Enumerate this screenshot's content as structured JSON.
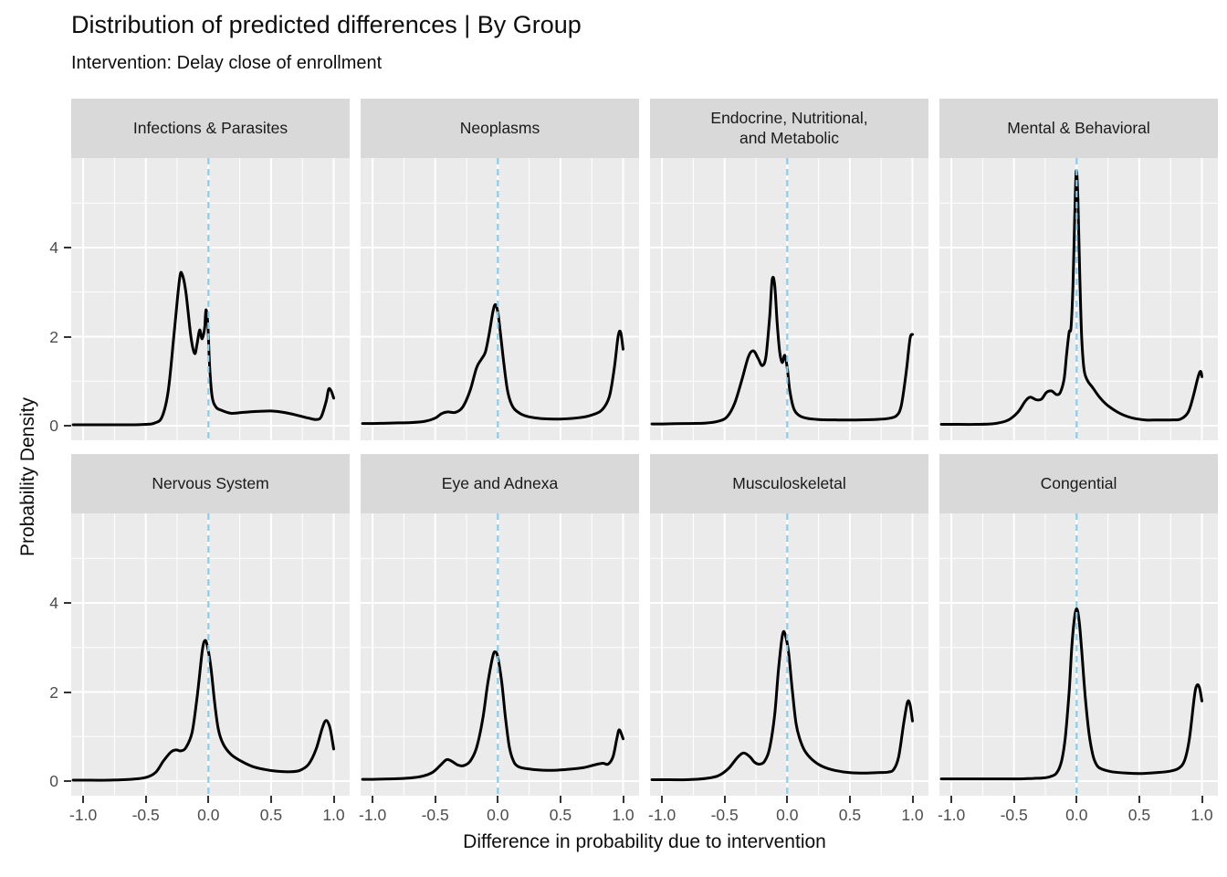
{
  "title": "Distribution of predicted differences | By Group",
  "subtitle": "Intervention: Delay close of enrollment",
  "x_axis": {
    "label": "Difference in probability due to intervention",
    "ticks": [
      "-1.0",
      "-0.5",
      "0.0",
      "0.5",
      "1.0"
    ],
    "tick_values": [
      -1.0,
      -0.5,
      0.0,
      0.5,
      1.0
    ],
    "minor_gridlines": [
      -0.75,
      -0.25,
      0.25,
      0.75
    ],
    "range": [
      -1.1,
      1.13
    ]
  },
  "y_axis": {
    "label": "Probability Density",
    "ticks": [
      "0",
      "2",
      "4"
    ],
    "tick_values": [
      0,
      2,
      4
    ],
    "minor_gridlines": [
      1,
      3,
      5
    ],
    "range": [
      -0.3,
      6.0
    ]
  },
  "colors": {
    "panel_background": "#EBEBEB",
    "strip_background": "#D9D9D9",
    "grid_line": "#FFFFFF",
    "curve": "#000000",
    "reference_line": "#87CEEB",
    "axis_text": "#4D4D4D",
    "tick_mark": "#333333"
  },
  "chart_data": {
    "type": "line",
    "subtype": "faceted-density",
    "layout": {
      "rows": 2,
      "cols": 4
    },
    "grid": "major and minor white gridlines on grey panel",
    "legend": "none",
    "reference_line_x": 0,
    "facets": [
      {
        "title": "Infections & Parasites",
        "points": [
          [
            -1.08,
            0.02
          ],
          [
            -1,
            0.02
          ],
          [
            -0.8,
            0.02
          ],
          [
            -0.6,
            0.02
          ],
          [
            -0.5,
            0.03
          ],
          [
            -0.43,
            0.06
          ],
          [
            -0.37,
            0.2
          ],
          [
            -0.32,
            0.8
          ],
          [
            -0.27,
            2.2
          ],
          [
            -0.23,
            3.3
          ],
          [
            -0.21,
            3.4
          ],
          [
            -0.18,
            3.0
          ],
          [
            -0.14,
            2.0
          ],
          [
            -0.11,
            1.62
          ],
          [
            -0.09,
            1.85
          ],
          [
            -0.07,
            2.15
          ],
          [
            -0.05,
            1.95
          ],
          [
            -0.03,
            2.2
          ],
          [
            -0.02,
            2.6
          ],
          [
            -0.005,
            2.3
          ],
          [
            0.01,
            1.3
          ],
          [
            0.03,
            0.65
          ],
          [
            0.06,
            0.42
          ],
          [
            0.1,
            0.35
          ],
          [
            0.18,
            0.28
          ],
          [
            0.28,
            0.3
          ],
          [
            0.38,
            0.32
          ],
          [
            0.5,
            0.33
          ],
          [
            0.6,
            0.3
          ],
          [
            0.7,
            0.24
          ],
          [
            0.8,
            0.17
          ],
          [
            0.86,
            0.14
          ],
          [
            0.9,
            0.2
          ],
          [
            0.94,
            0.55
          ],
          [
            0.96,
            0.82
          ],
          [
            0.98,
            0.78
          ],
          [
            1.0,
            0.62
          ]
        ]
      },
      {
        "title": "Neoplasms",
        "points": [
          [
            -1.08,
            0.05
          ],
          [
            -1,
            0.05
          ],
          [
            -0.85,
            0.06
          ],
          [
            -0.7,
            0.07
          ],
          [
            -0.58,
            0.1
          ],
          [
            -0.5,
            0.17
          ],
          [
            -0.45,
            0.27
          ],
          [
            -0.4,
            0.31
          ],
          [
            -0.34,
            0.3
          ],
          [
            -0.28,
            0.42
          ],
          [
            -0.22,
            0.8
          ],
          [
            -0.17,
            1.3
          ],
          [
            -0.13,
            1.5
          ],
          [
            -0.1,
            1.65
          ],
          [
            -0.07,
            2.05
          ],
          [
            -0.04,
            2.55
          ],
          [
            -0.02,
            2.72
          ],
          [
            0,
            2.55
          ],
          [
            0.02,
            2.1
          ],
          [
            0.05,
            1.35
          ],
          [
            0.08,
            0.75
          ],
          [
            0.12,
            0.42
          ],
          [
            0.18,
            0.27
          ],
          [
            0.25,
            0.2
          ],
          [
            0.35,
            0.16
          ],
          [
            0.5,
            0.15
          ],
          [
            0.65,
            0.18
          ],
          [
            0.75,
            0.24
          ],
          [
            0.83,
            0.35
          ],
          [
            0.89,
            0.65
          ],
          [
            0.93,
            1.3
          ],
          [
            0.96,
            2.0
          ],
          [
            0.98,
            2.1
          ],
          [
            1.0,
            1.72
          ]
        ]
      },
      {
        "title": "Endocrine, Nutritional,\nand Metabolic",
        "points": [
          [
            -1.08,
            0.04
          ],
          [
            -1,
            0.04
          ],
          [
            -0.8,
            0.05
          ],
          [
            -0.65,
            0.06
          ],
          [
            -0.55,
            0.1
          ],
          [
            -0.48,
            0.2
          ],
          [
            -0.42,
            0.5
          ],
          [
            -0.36,
            1.05
          ],
          [
            -0.31,
            1.55
          ],
          [
            -0.27,
            1.68
          ],
          [
            -0.23,
            1.5
          ],
          [
            -0.2,
            1.35
          ],
          [
            -0.17,
            1.55
          ],
          [
            -0.14,
            2.45
          ],
          [
            -0.12,
            3.28
          ],
          [
            -0.1,
            3.15
          ],
          [
            -0.08,
            2.3
          ],
          [
            -0.06,
            1.65
          ],
          [
            -0.04,
            1.42
          ],
          [
            -0.02,
            1.58
          ],
          [
            0,
            1.3
          ],
          [
            0.02,
            0.8
          ],
          [
            0.05,
            0.4
          ],
          [
            0.09,
            0.24
          ],
          [
            0.15,
            0.17
          ],
          [
            0.25,
            0.14
          ],
          [
            0.4,
            0.13
          ],
          [
            0.55,
            0.13
          ],
          [
            0.7,
            0.14
          ],
          [
            0.8,
            0.16
          ],
          [
            0.87,
            0.22
          ],
          [
            0.91,
            0.45
          ],
          [
            0.95,
            1.2
          ],
          [
            0.98,
            1.95
          ],
          [
            1.0,
            2.05
          ]
        ]
      },
      {
        "title": "Mental & Behavioral",
        "points": [
          [
            -1.08,
            0.03
          ],
          [
            -1,
            0.03
          ],
          [
            -0.8,
            0.03
          ],
          [
            -0.65,
            0.05
          ],
          [
            -0.55,
            0.12
          ],
          [
            -0.47,
            0.3
          ],
          [
            -0.41,
            0.55
          ],
          [
            -0.37,
            0.64
          ],
          [
            -0.32,
            0.58
          ],
          [
            -0.28,
            0.6
          ],
          [
            -0.24,
            0.75
          ],
          [
            -0.2,
            0.78
          ],
          [
            -0.16,
            0.7
          ],
          [
            -0.13,
            0.75
          ],
          [
            -0.1,
            1.05
          ],
          [
            -0.08,
            1.6
          ],
          [
            -0.06,
            2.1
          ],
          [
            -0.045,
            2.2
          ],
          [
            -0.03,
            3.1
          ],
          [
            -0.015,
            4.7
          ],
          [
            -0.003,
            5.72
          ],
          [
            0.01,
            5.1
          ],
          [
            0.025,
            3.4
          ],
          [
            0.04,
            2.0
          ],
          [
            0.06,
            1.25
          ],
          [
            0.09,
            1.0
          ],
          [
            0.13,
            0.85
          ],
          [
            0.18,
            0.65
          ],
          [
            0.25,
            0.45
          ],
          [
            0.35,
            0.27
          ],
          [
            0.45,
            0.17
          ],
          [
            0.55,
            0.13
          ],
          [
            0.65,
            0.13
          ],
          [
            0.75,
            0.13
          ],
          [
            0.83,
            0.15
          ],
          [
            0.89,
            0.3
          ],
          [
            0.93,
            0.65
          ],
          [
            0.97,
            1.1
          ],
          [
            0.99,
            1.22
          ],
          [
            1.0,
            1.1
          ]
        ]
      },
      {
        "title": "Nervous System",
        "points": [
          [
            -1.08,
            0.02
          ],
          [
            -1,
            0.02
          ],
          [
            -0.8,
            0.02
          ],
          [
            -0.62,
            0.04
          ],
          [
            -0.5,
            0.08
          ],
          [
            -0.42,
            0.2
          ],
          [
            -0.36,
            0.45
          ],
          [
            -0.3,
            0.65
          ],
          [
            -0.26,
            0.7
          ],
          [
            -0.22,
            0.68
          ],
          [
            -0.18,
            0.75
          ],
          [
            -0.13,
            1.1
          ],
          [
            -0.09,
            1.9
          ],
          [
            -0.05,
            2.9
          ],
          [
            -0.03,
            3.15
          ],
          [
            -0.01,
            3.05
          ],
          [
            0.02,
            2.55
          ],
          [
            0.05,
            1.75
          ],
          [
            0.08,
            1.15
          ],
          [
            0.12,
            0.82
          ],
          [
            0.18,
            0.6
          ],
          [
            0.26,
            0.45
          ],
          [
            0.35,
            0.33
          ],
          [
            0.45,
            0.26
          ],
          [
            0.55,
            0.22
          ],
          [
            0.65,
            0.21
          ],
          [
            0.73,
            0.24
          ],
          [
            0.8,
            0.38
          ],
          [
            0.86,
            0.72
          ],
          [
            0.91,
            1.2
          ],
          [
            0.94,
            1.36
          ],
          [
            0.97,
            1.2
          ],
          [
            1.0,
            0.72
          ]
        ]
      },
      {
        "title": "Eye and Adnexa",
        "points": [
          [
            -1.08,
            0.04
          ],
          [
            -1,
            0.04
          ],
          [
            -0.85,
            0.05
          ],
          [
            -0.7,
            0.07
          ],
          [
            -0.6,
            0.11
          ],
          [
            -0.52,
            0.2
          ],
          [
            -0.46,
            0.35
          ],
          [
            -0.41,
            0.48
          ],
          [
            -0.37,
            0.45
          ],
          [
            -0.32,
            0.36
          ],
          [
            -0.27,
            0.35
          ],
          [
            -0.22,
            0.45
          ],
          [
            -0.17,
            0.75
          ],
          [
            -0.12,
            1.4
          ],
          [
            -0.08,
            2.2
          ],
          [
            -0.04,
            2.8
          ],
          [
            -0.02,
            2.9
          ],
          [
            0,
            2.78
          ],
          [
            0.03,
            2.25
          ],
          [
            0.06,
            1.45
          ],
          [
            0.09,
            0.8
          ],
          [
            0.12,
            0.48
          ],
          [
            0.16,
            0.33
          ],
          [
            0.25,
            0.27
          ],
          [
            0.4,
            0.24
          ],
          [
            0.55,
            0.26
          ],
          [
            0.68,
            0.3
          ],
          [
            0.78,
            0.37
          ],
          [
            0.84,
            0.4
          ],
          [
            0.88,
            0.38
          ],
          [
            0.92,
            0.55
          ],
          [
            0.95,
            0.95
          ],
          [
            0.97,
            1.15
          ],
          [
            1.0,
            0.95
          ]
        ]
      },
      {
        "title": "Musculoskeletal",
        "points": [
          [
            -1.08,
            0.03
          ],
          [
            -1,
            0.03
          ],
          [
            -0.8,
            0.03
          ],
          [
            -0.65,
            0.06
          ],
          [
            -0.55,
            0.12
          ],
          [
            -0.47,
            0.28
          ],
          [
            -0.4,
            0.52
          ],
          [
            -0.35,
            0.63
          ],
          [
            -0.3,
            0.55
          ],
          [
            -0.26,
            0.42
          ],
          [
            -0.22,
            0.38
          ],
          [
            -0.18,
            0.45
          ],
          [
            -0.14,
            0.75
          ],
          [
            -0.1,
            1.5
          ],
          [
            -0.07,
            2.5
          ],
          [
            -0.04,
            3.25
          ],
          [
            -0.02,
            3.32
          ],
          [
            0.01,
            2.9
          ],
          [
            0.04,
            2.05
          ],
          [
            0.07,
            1.3
          ],
          [
            0.1,
            0.95
          ],
          [
            0.14,
            0.68
          ],
          [
            0.2,
            0.48
          ],
          [
            0.28,
            0.33
          ],
          [
            0.38,
            0.24
          ],
          [
            0.5,
            0.19
          ],
          [
            0.62,
            0.18
          ],
          [
            0.72,
            0.19
          ],
          [
            0.8,
            0.2
          ],
          [
            0.85,
            0.26
          ],
          [
            0.89,
            0.55
          ],
          [
            0.93,
            1.3
          ],
          [
            0.96,
            1.77
          ],
          [
            0.98,
            1.72
          ],
          [
            1.0,
            1.35
          ]
        ]
      },
      {
        "title": "Congential",
        "points": [
          [
            -1.08,
            0.05
          ],
          [
            -1,
            0.05
          ],
          [
            -0.8,
            0.05
          ],
          [
            -0.6,
            0.05
          ],
          [
            -0.45,
            0.05
          ],
          [
            -0.35,
            0.06
          ],
          [
            -0.27,
            0.07
          ],
          [
            -0.21,
            0.1
          ],
          [
            -0.16,
            0.18
          ],
          [
            -0.12,
            0.45
          ],
          [
            -0.09,
            1.0
          ],
          [
            -0.06,
            2.0
          ],
          [
            -0.04,
            2.95
          ],
          [
            -0.02,
            3.6
          ],
          [
            0,
            3.87
          ],
          [
            0.02,
            3.6
          ],
          [
            0.04,
            2.95
          ],
          [
            0.07,
            1.85
          ],
          [
            0.1,
            1.05
          ],
          [
            0.13,
            0.58
          ],
          [
            0.16,
            0.36
          ],
          [
            0.2,
            0.27
          ],
          [
            0.28,
            0.21
          ],
          [
            0.4,
            0.18
          ],
          [
            0.52,
            0.17
          ],
          [
            0.64,
            0.19
          ],
          [
            0.74,
            0.22
          ],
          [
            0.81,
            0.28
          ],
          [
            0.86,
            0.45
          ],
          [
            0.9,
            0.95
          ],
          [
            0.94,
            1.9
          ],
          [
            0.96,
            2.15
          ],
          [
            0.98,
            2.1
          ],
          [
            1.0,
            1.8
          ]
        ]
      }
    ]
  }
}
